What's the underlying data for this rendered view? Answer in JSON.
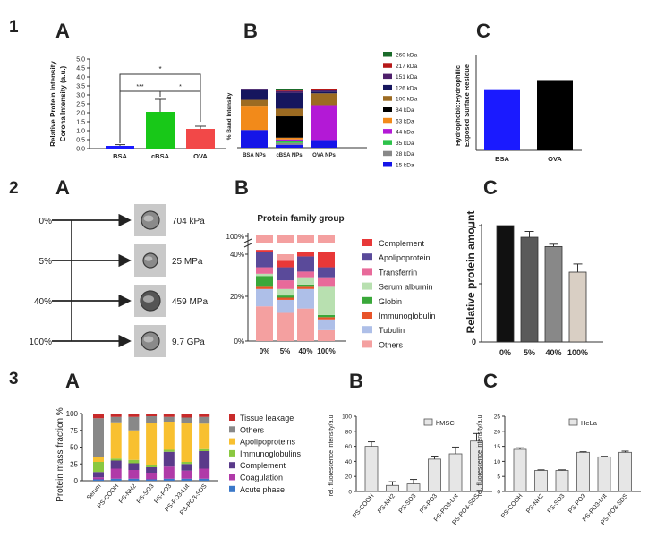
{
  "row_labels": [
    "1",
    "2",
    "3"
  ],
  "panel_letters": {
    "r1": [
      "A",
      "B",
      "C"
    ],
    "r2": [
      "A",
      "B",
      "C"
    ],
    "r3": [
      "A",
      "B",
      "C"
    ]
  },
  "colors": {
    "blue": "#1a1aff",
    "green": "#18c818",
    "red": "#f24848",
    "black": "#000000",
    "gray_bar": "#e6e6e6"
  },
  "chart_data": [
    {
      "id": "1A",
      "type": "bar",
      "ylabel": "Relative Protein Corona Intensity (a.u.)",
      "categories": [
        "BSA",
        "cBSA",
        "OVA"
      ],
      "values": [
        0.15,
        2.05,
        1.1
      ],
      "errors": [
        0.07,
        0.7,
        0.15
      ],
      "ylim": [
        0,
        5
      ],
      "yticks": [
        "0.0",
        "0.5",
        "1.0",
        "1.5",
        "2.0",
        "2.5",
        "3.0",
        "3.5",
        "4.0",
        "4.5",
        "5.0"
      ],
      "significance": [
        "*",
        "***",
        "*"
      ]
    },
    {
      "id": "1B",
      "type": "bar",
      "stacked": true,
      "ylabel": "% Band Intensity",
      "categories": [
        "BSA NPs",
        "cBSA NPs",
        "OVA NPs"
      ],
      "ylim": [
        0,
        100
      ],
      "series": [
        {
          "name": "15 kDa",
          "color": "#1515e8",
          "values": [
            30,
            5,
            13
          ]
        },
        {
          "name": "28 kDa",
          "color": "#888888",
          "values": [
            0,
            3,
            0
          ]
        },
        {
          "name": "35 kDa",
          "color": "#2dc24a",
          "values": [
            0,
            3,
            0
          ]
        },
        {
          "name": "44 kDa",
          "color": "#b319d6",
          "values": [
            0,
            3,
            59
          ]
        },
        {
          "name": "63 kDa",
          "color": "#f28a1a",
          "values": [
            41,
            3,
            0
          ]
        },
        {
          "name": "84 kDa",
          "color": "#000000",
          "values": [
            0,
            36,
            0
          ]
        },
        {
          "name": "100 kDa",
          "color": "#9c6b22",
          "values": [
            10,
            13,
            20
          ]
        },
        {
          "name": "126 kDa",
          "color": "#16165e",
          "values": [
            18,
            27,
            3
          ]
        },
        {
          "name": "151 kDa",
          "color": "#4e1f6b",
          "values": [
            1,
            3,
            2
          ]
        },
        {
          "name": "217 kDa",
          "color": "#b61818",
          "values": [
            0,
            2,
            3
          ]
        },
        {
          "name": "260 kDa",
          "color": "#1a6b2a",
          "values": [
            0,
            2,
            0
          ]
        }
      ]
    },
    {
      "id": "1C",
      "type": "bar",
      "ylabel": "Hydrophobic:Hydrophilic Exposed Surface Residue",
      "categories": [
        "BSA",
        "OVA"
      ],
      "values": [
        0.67,
        0.77
      ],
      "ylim": [
        0,
        1.0
      ],
      "yticks": []
    },
    {
      "id": "2A",
      "type": "diagram",
      "levels": [
        "0%",
        "5%",
        "40%",
        "100%"
      ],
      "moduli": [
        "704 kPa",
        "25 MPa",
        "459 MPa",
        "9.7 GPa"
      ]
    },
    {
      "id": "2B",
      "type": "bar",
      "stacked": true,
      "title": "Protein family group",
      "categories": [
        "0%",
        "5%",
        "40%",
        "100%"
      ],
      "yticks": [
        "0%",
        "20%",
        "40%",
        "100%"
      ],
      "series": [
        {
          "name": "Others",
          "color": "#f4a0a0",
          "values": [
            16,
            13,
            15,
            5
          ]
        },
        {
          "name": "Tubulin",
          "color": "#aebfe8",
          "values": [
            8,
            6,
            9,
            5
          ]
        },
        {
          "name": "Immunoglobulin",
          "color": "#e8542a",
          "values": [
            1,
            1,
            1,
            1
          ]
        },
        {
          "name": "Globin",
          "color": "#3aa83a",
          "values": [
            5,
            1,
            1,
            1
          ]
        },
        {
          "name": "Serum albumin",
          "color": "#b8e0b0",
          "values": [
            1,
            3,
            3,
            13
          ]
        },
        {
          "name": "Transferrin",
          "color": "#e86a9a",
          "values": [
            3,
            4,
            3,
            4
          ]
        },
        {
          "name": "Apolipoprotein",
          "color": "#5a4a9a",
          "values": [
            7,
            6,
            7,
            5
          ]
        },
        {
          "name": "Complement",
          "color": "#e83838",
          "values": [
            1,
            3,
            2,
            7
          ]
        }
      ]
    },
    {
      "id": "2C",
      "type": "bar",
      "ylabel": "Relative protein amount",
      "categories": [
        "0%",
        "5%",
        "40%",
        "100%"
      ],
      "values": [
        1.0,
        0.9,
        0.82,
        0.6
      ],
      "errors": [
        0.0,
        0.05,
        0.02,
        0.07
      ],
      "colors": [
        "#111111",
        "#5a5a5a",
        "#888888",
        "#d9cfc4"
      ],
      "ylim": [
        0,
        1
      ],
      "yticks": [
        "0",
        "1"
      ]
    },
    {
      "id": "3A",
      "type": "bar",
      "stacked": true,
      "ylabel": "Protein mass fraction %",
      "categories": [
        "Serum",
        "PS-COOH",
        "PS-NH2",
        "PS-SO3",
        "PS-PO3",
        "PS-PO3-Lut",
        "PS-PO3-SDS"
      ],
      "ylim": [
        0,
        100
      ],
      "yticks": [
        "0",
        "25",
        "50",
        "75",
        "100"
      ],
      "series": [
        {
          "name": "Acute phase",
          "color": "#3a78c8",
          "values": [
            2,
            3,
            3,
            2,
            3,
            3,
            3
          ]
        },
        {
          "name": "Coagulation",
          "color": "#b03aa8",
          "values": [
            3,
            15,
            13,
            10,
            18,
            12,
            15
          ]
        },
        {
          "name": "Complement",
          "color": "#5a3a8a",
          "values": [
            8,
            12,
            10,
            8,
            22,
            10,
            26
          ]
        },
        {
          "name": "Immunoglobulins",
          "color": "#8ac840",
          "values": [
            15,
            3,
            5,
            4,
            3,
            3,
            3
          ]
        },
        {
          "name": "Apolipoproteins",
          "color": "#f8c030",
          "values": [
            7,
            54,
            44,
            62,
            42,
            58,
            38
          ]
        },
        {
          "name": "Others",
          "color": "#888888",
          "values": [
            58,
            8,
            20,
            10,
            7,
            8,
            10
          ]
        },
        {
          "name": "Tissue leakage",
          "color": "#c82a2a",
          "values": [
            7,
            5,
            5,
            4,
            5,
            6,
            5
          ]
        }
      ]
    },
    {
      "id": "3B",
      "type": "bar",
      "ylabel": "rel. fluorescence intensity/a.u.",
      "legend": "hMSC",
      "categories": [
        "PS-COOH",
        "PS-NH2",
        "PS-SO3",
        "PS-PO3",
        "PS-PO3-Lut",
        "PS-PO3-SDS"
      ],
      "values": [
        60,
        8,
        10,
        43,
        50,
        67
      ],
      "errors": [
        6,
        5,
        6,
        4,
        9,
        10
      ],
      "ylim": [
        0,
        100
      ],
      "yticks": [
        "0",
        "20",
        "40",
        "60",
        "80",
        "100"
      ]
    },
    {
      "id": "3C",
      "type": "bar",
      "ylabel": "rel. fluorescence intensity/a.u.",
      "legend": "HeLa",
      "categories": [
        "PS-COOH",
        "PS-NH2",
        "PS-SO3",
        "PS-PO3",
        "PS-PO3-Lut",
        "PS-PO3-SDS"
      ],
      "values": [
        14,
        7,
        7,
        13,
        11.5,
        13
      ],
      "errors": [
        0.5,
        0.2,
        0.2,
        0.2,
        0.2,
        0.4
      ],
      "ylim": [
        0,
        25
      ],
      "yticks": [
        "0",
        "5",
        "10",
        "15",
        "20",
        "25"
      ]
    }
  ]
}
